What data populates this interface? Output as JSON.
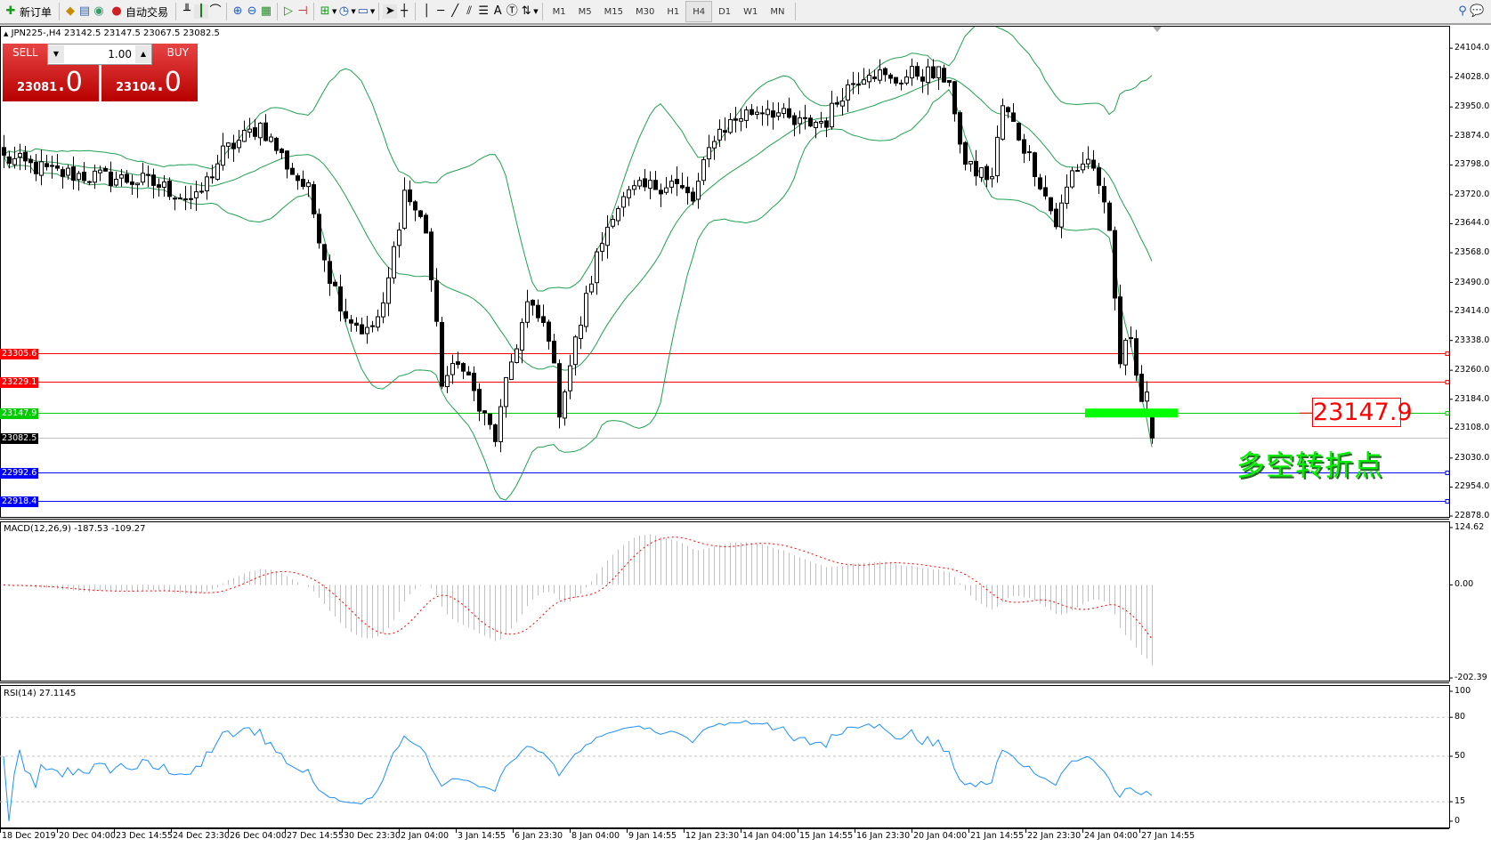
{
  "toolbar": {
    "new_order": "新订单",
    "auto_trading": "自动交易",
    "timeframes": [
      "M1",
      "M5",
      "M15",
      "M30",
      "H1",
      "H4",
      "D1",
      "W1",
      "MN"
    ],
    "active_timeframe": "H4"
  },
  "chart": {
    "title": "JPN225-,H4  23142.5 23147.5 23067.5 23082.5",
    "symbol": "JPN225-",
    "period": "H4",
    "last_bar": {
      "open": 23142.5,
      "high": 23147.5,
      "low": 23067.5,
      "close": 23082.5
    }
  },
  "trade_panel": {
    "sell_label": "SELL",
    "buy_label": "BUY",
    "lot": "1.00",
    "sell_price_main": "23081",
    "sell_price_frac": ".0",
    "buy_price_main": "23104",
    "buy_price_frac": ".0"
  },
  "price_axis": [
    "24104.0",
    "24028.0",
    "23950.0",
    "23874.0",
    "23798.0",
    "23720.0",
    "23644.0",
    "23568.0",
    "23490.0",
    "23414.0",
    "23338.0",
    "23260.0",
    "23184.0",
    "23108.0",
    "23030.0",
    "22954.0",
    "22878.0"
  ],
  "levels": [
    {
      "price": 23305.6,
      "label": "23305.6",
      "color": "#ff0000"
    },
    {
      "price": 23229.1,
      "label": "23229.1",
      "color": "#ff0000"
    },
    {
      "price": 23147.9,
      "label": "23147.9",
      "color": "#00cc00"
    },
    {
      "price": 22992.6,
      "label": "22992.6",
      "color": "#0000ff"
    },
    {
      "price": 22918.4,
      "label": "22918.4",
      "color": "#0000ff"
    }
  ],
  "current_price": {
    "price": 23082.5,
    "label": "23082.5"
  },
  "annotation": {
    "price_box": "23147.9",
    "text": "多空转折点",
    "color": "#00ff00"
  },
  "macd": {
    "label": "MACD(12,26,9) -187.53 -109.27",
    "axis": [
      "124.62",
      "0.00",
      "-202.39"
    ]
  },
  "rsi": {
    "label": "RSI(14) 27.1145",
    "axis": [
      "100",
      "80",
      "50",
      "15",
      "0"
    ]
  },
  "time_axis": [
    "18 Dec 2019",
    "20 Dec 04:00",
    "23 Dec 14:55",
    "24 Dec 23:30",
    "26 Dec 04:00",
    "27 Dec 14:55",
    "30 Dec 23:30",
    "2 Jan 04:00",
    "3 Jan 14:55",
    "6 Jan 23:30",
    "8 Jan 04:00",
    "9 Jan 14:55",
    "12 Jan 23:30",
    "14 Jan 04:00",
    "15 Jan 14:55",
    "16 Jan 23:30",
    "20 Jan 04:00",
    "21 Jan 14:55",
    "22 Jan 23:30",
    "24 Jan 04:00",
    "27 Jan 14:55"
  ],
  "chart_data": {
    "type": "candlestick",
    "close_path": [
      [
        0,
        23816
      ],
      [
        9,
        23779
      ],
      [
        18,
        23766
      ],
      [
        27,
        23754
      ],
      [
        36,
        23704
      ],
      [
        41,
        23829
      ],
      [
        48,
        23903
      ],
      [
        54,
        23779
      ],
      [
        57,
        23729
      ],
      [
        61,
        23506
      ],
      [
        64,
        23407
      ],
      [
        68,
        23357
      ],
      [
        71,
        23419
      ],
      [
        75,
        23729
      ],
      [
        79,
        23630
      ],
      [
        82,
        23233
      ],
      [
        86,
        23282
      ],
      [
        89,
        23158
      ],
      [
        92,
        23084
      ],
      [
        95,
        23282
      ],
      [
        98,
        23431
      ],
      [
        102,
        23357
      ],
      [
        104,
        23158
      ],
      [
        107,
        23332
      ],
      [
        111,
        23555
      ],
      [
        114,
        23680
      ],
      [
        118,
        23729
      ],
      [
        125,
        23754
      ],
      [
        129,
        23704
      ],
      [
        133,
        23878
      ],
      [
        138,
        23928
      ],
      [
        143,
        23952
      ],
      [
        148,
        23903
      ],
      [
        154,
        23915
      ],
      [
        157,
        23990
      ],
      [
        162,
        24052
      ],
      [
        166,
        24015
      ],
      [
        171,
        24040
      ],
      [
        177,
        24027
      ],
      [
        179,
        23829
      ],
      [
        182,
        23779
      ],
      [
        185,
        23766
      ],
      [
        187,
        23952
      ],
      [
        189,
        23903
      ],
      [
        193,
        23791
      ],
      [
        197,
        23643
      ],
      [
        200,
        23779
      ],
      [
        203,
        23816
      ],
      [
        205,
        23754
      ],
      [
        207,
        23605
      ],
      [
        209,
        23282
      ],
      [
        211,
        23357
      ],
      [
        213,
        23183
      ],
      [
        214,
        23208
      ],
      [
        215,
        23082.5
      ]
    ],
    "indicators": [
      "Bollinger Bands(20,2)",
      "MACD(12,26,9)",
      "RSI(14)"
    ],
    "colors": {
      "bands": "#20a050",
      "macd_hist": "#c0c0c0",
      "macd_signal": "#ff0000",
      "rsi": "#1e90ff"
    }
  }
}
